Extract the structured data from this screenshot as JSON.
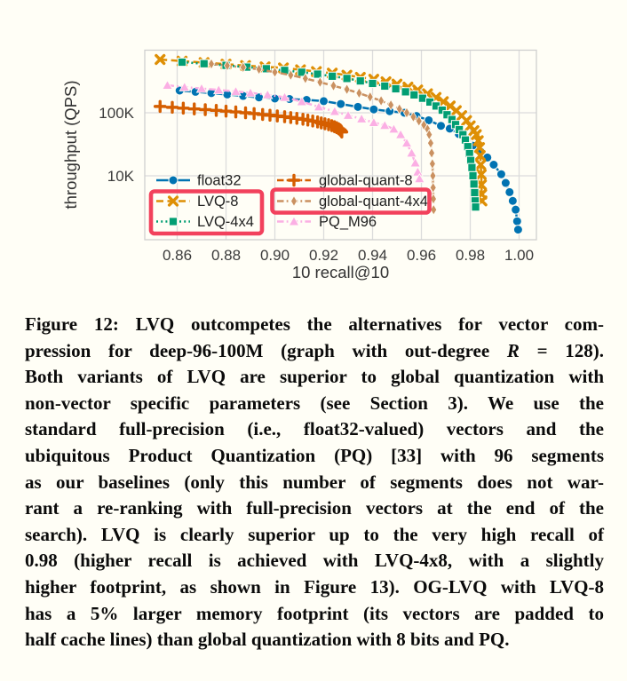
{
  "figure": {
    "caption_lines": [
      [
        {
          "t": "Figure 12: LVQ outcompetes the alternatives for vector com-"
        }
      ],
      [
        {
          "t": "pression for deep-96-100M (graph with out-degree "
        },
        {
          "t": "R",
          "i": true
        },
        {
          "t": " = 128)."
        }
      ],
      [
        {
          "t": "Both variants of LVQ are superior to global quantization with"
        }
      ],
      [
        {
          "t": "non-vector specific parameters (see Section 3). We use the"
        }
      ],
      [
        {
          "t": "standard full-precision (i.e., float32-valued) vectors and the"
        }
      ],
      [
        {
          "t": "ubiquitous Product Quantization (PQ) [33] with 96 segments"
        }
      ],
      [
        {
          "t": "as our baselines (only this number of segments does not war-"
        }
      ],
      [
        {
          "t": "rant a re-ranking with full-precision vectors at the end of the"
        }
      ],
      [
        {
          "t": "search). LVQ is clearly superior up to the very high recall of"
        }
      ],
      [
        {
          "t": "0.98 (higher recall is achieved with LVQ-4x8, with a slightly"
        }
      ],
      [
        {
          "t": "higher footprint, as shown in Figure 13). OG-LVQ with LVQ-8"
        }
      ],
      [
        {
          "t": "has a 5% larger memory footprint (its vectors are padded to"
        }
      ],
      [
        {
          "t": "half cache lines) than global quantization with 8 bits and PQ."
        }
      ]
    ]
  },
  "chart_data": {
    "type": "line",
    "title": "",
    "xlabel": "10 recall@10",
    "ylabel": "throughput (QPS)",
    "x_scale": "linear",
    "y_scale": "log",
    "xlim": [
      0.8467,
      1.0071
    ],
    "ylim": [
      1000,
      980000
    ],
    "grid": true,
    "legend": {
      "position": "lower left",
      "columns": 2
    },
    "x_ticks": [
      {
        "value": 0.86,
        "label": "0.86"
      },
      {
        "value": 0.88,
        "label": "0.88"
      },
      {
        "value": 0.9,
        "label": "0.90"
      },
      {
        "value": 0.92,
        "label": "0.92"
      },
      {
        "value": 0.94,
        "label": "0.94"
      },
      {
        "value": 0.96,
        "label": "0.96"
      },
      {
        "value": 0.98,
        "label": "0.98"
      },
      {
        "value": 1.0,
        "label": "1.00"
      }
    ],
    "y_ticks": [
      {
        "value": 10000,
        "label": "10K"
      },
      {
        "value": 100000,
        "label": "100K"
      }
    ],
    "style": {
      "background": "#fffef6",
      "grid_color": "#dcdcdc",
      "spine_color": "#cfcfcf",
      "tick_color": "#3b3b3b",
      "annotation_color": "#f2415c"
    },
    "series": [
      {
        "name": "float32",
        "color": "#0173b2",
        "line_style": "solid",
        "marker": "circle",
        "points": [
          [
            0.861,
            225000
          ],
          [
            0.8675,
            215000
          ],
          [
            0.874,
            205000
          ],
          [
            0.8805,
            195000
          ],
          [
            0.887,
            185000
          ],
          [
            0.8935,
            175000
          ],
          [
            0.9,
            168000
          ],
          [
            0.906,
            165000
          ],
          [
            0.913,
            160000
          ],
          [
            0.92,
            153000
          ],
          [
            0.927,
            138000
          ],
          [
            0.934,
            124000
          ],
          [
            0.9405,
            113000
          ],
          [
            0.947,
            106000
          ],
          [
            0.953,
            100000
          ],
          [
            0.958,
            89000
          ],
          [
            0.963,
            76000
          ],
          [
            0.968,
            62000
          ],
          [
            0.9716,
            56000
          ],
          [
            0.9753,
            46000
          ],
          [
            0.978,
            38000
          ],
          [
            0.981,
            30000
          ],
          [
            0.9843,
            24000
          ],
          [
            0.987,
            19500
          ],
          [
            0.9896,
            15000
          ],
          [
            0.9927,
            10600
          ],
          [
            0.9945,
            7700
          ],
          [
            0.9961,
            5500
          ],
          [
            0.9974,
            4000
          ],
          [
            0.9986,
            2900
          ],
          [
            0.9992,
            1900
          ],
          [
            0.9996,
            1400
          ]
        ]
      },
      {
        "name": "LVQ-8",
        "color": "#de8f05",
        "line_style": "dashed",
        "marker": "x",
        "points": [
          [
            0.853,
            700000
          ],
          [
            0.862,
            660000
          ],
          [
            0.871,
            625000
          ],
          [
            0.88,
            590000
          ],
          [
            0.888,
            560000
          ],
          [
            0.896,
            535000
          ],
          [
            0.9035,
            515000
          ],
          [
            0.9105,
            480000
          ],
          [
            0.917,
            450000
          ],
          [
            0.9235,
            425000
          ],
          [
            0.9295,
            395000
          ],
          [
            0.935,
            365000
          ],
          [
            0.9405,
            340000
          ],
          [
            0.9455,
            310000
          ],
          [
            0.95,
            285000
          ],
          [
            0.9545,
            255000
          ],
          [
            0.9585,
            230000
          ],
          [
            0.9625,
            200000
          ],
          [
            0.966,
            175000
          ],
          [
            0.969,
            150000
          ],
          [
            0.9718,
            128000
          ],
          [
            0.9743,
            108000
          ],
          [
            0.9765,
            90000
          ],
          [
            0.9785,
            75000
          ],
          [
            0.98,
            62000
          ],
          [
            0.9815,
            52000
          ],
          [
            0.9825,
            45000
          ],
          [
            0.9833,
            36000
          ],
          [
            0.9838,
            28000
          ],
          [
            0.9841,
            21000
          ],
          [
            0.9843,
            15000
          ],
          [
            0.9845,
            10500
          ],
          [
            0.9846,
            7200
          ],
          [
            0.9847,
            5100
          ],
          [
            0.9848,
            4000
          ]
        ]
      },
      {
        "name": "LVQ-4x4",
        "color": "#029e73",
        "line_style": "dotted",
        "marker": "square",
        "points": [
          [
            0.862,
            635000
          ],
          [
            0.871,
            600000
          ],
          [
            0.88,
            565000
          ],
          [
            0.8885,
            530000
          ],
          [
            0.8965,
            500000
          ],
          [
            0.904,
            470000
          ],
          [
            0.911,
            440000
          ],
          [
            0.9175,
            410000
          ],
          [
            0.9235,
            380000
          ],
          [
            0.9295,
            350000
          ],
          [
            0.935,
            320000
          ],
          [
            0.94,
            292000
          ],
          [
            0.945,
            265000
          ],
          [
            0.9495,
            240000
          ],
          [
            0.9535,
            215000
          ],
          [
            0.957,
            192000
          ],
          [
            0.9605,
            170000
          ],
          [
            0.9635,
            148000
          ],
          [
            0.966,
            128000
          ],
          [
            0.9685,
            110000
          ],
          [
            0.9705,
            93000
          ],
          [
            0.9725,
            78000
          ],
          [
            0.974,
            65000
          ],
          [
            0.9755,
            54000
          ],
          [
            0.977,
            45000
          ],
          [
            0.978,
            37000
          ],
          [
            0.979,
            29000
          ],
          [
            0.9797,
            22500
          ],
          [
            0.9802,
            17500
          ],
          [
            0.9807,
            13500
          ],
          [
            0.9811,
            10000
          ],
          [
            0.9815,
            7400
          ],
          [
            0.9818,
            5400
          ],
          [
            0.982,
            4000
          ],
          [
            0.9822,
            3200
          ]
        ]
      },
      {
        "name": "global-quant-8",
        "color": "#d55e00",
        "line_style": "dashdot",
        "marker": "plus",
        "points": [
          [
            0.853,
            126000
          ],
          [
            0.858,
            122000
          ],
          [
            0.8625,
            118500
          ],
          [
            0.867,
            115000
          ],
          [
            0.8715,
            112000
          ],
          [
            0.876,
            109000
          ],
          [
            0.88,
            106000
          ],
          [
            0.884,
            103000
          ],
          [
            0.888,
            100000
          ],
          [
            0.8915,
            97000
          ],
          [
            0.895,
            94000
          ],
          [
            0.898,
            91500
          ],
          [
            0.901,
            89000
          ],
          [
            0.904,
            86500
          ],
          [
            0.9065,
            84000
          ],
          [
            0.909,
            81500
          ],
          [
            0.9115,
            79000
          ],
          [
            0.9135,
            76500
          ],
          [
            0.9155,
            74000
          ],
          [
            0.9175,
            71500
          ],
          [
            0.919,
            69000
          ],
          [
            0.9205,
            66800
          ],
          [
            0.922,
            64600
          ],
          [
            0.9233,
            62400
          ],
          [
            0.9244,
            60200
          ],
          [
            0.9253,
            58000
          ],
          [
            0.9261,
            55800
          ],
          [
            0.9267,
            53600
          ],
          [
            0.9271,
            51500
          ],
          [
            0.9274,
            49500
          ]
        ]
      },
      {
        "name": "global-quant-4x4",
        "color": "#ca9161",
        "line_style": "dashdot",
        "marker": "thin-diamond",
        "points": [
          [
            0.874,
            595000
          ],
          [
            0.8805,
            560000
          ],
          [
            0.887,
            525000
          ],
          [
            0.8935,
            490000
          ],
          [
            0.9,
            440000
          ],
          [
            0.9065,
            395000
          ],
          [
            0.9125,
            350000
          ],
          [
            0.9185,
            305000
          ],
          [
            0.924,
            268000
          ],
          [
            0.9295,
            235000
          ],
          [
            0.9345,
            205000
          ],
          [
            0.939,
            178000
          ],
          [
            0.9435,
            155000
          ],
          [
            0.9475,
            133000
          ],
          [
            0.951,
            115000
          ],
          [
            0.954,
            100000
          ],
          [
            0.9567,
            86000
          ],
          [
            0.959,
            74000
          ],
          [
            0.961,
            64000
          ],
          [
            0.9625,
            55000
          ],
          [
            0.9632,
            45000
          ],
          [
            0.9638,
            33000
          ],
          [
            0.9642,
            23000
          ],
          [
            0.9645,
            15500
          ],
          [
            0.9647,
            10000
          ],
          [
            0.9648,
            6500
          ],
          [
            0.9649,
            4300
          ],
          [
            0.965,
            2900
          ]
        ]
      },
      {
        "name": "PQ_M96",
        "color": "#fbafe4",
        "line_style": "dashdot",
        "marker": "triangle",
        "points": [
          [
            0.856,
            273000
          ],
          [
            0.863,
            255000
          ],
          [
            0.87,
            242000
          ],
          [
            0.877,
            230000
          ],
          [
            0.884,
            218000
          ],
          [
            0.89,
            207000
          ],
          [
            0.897,
            193000
          ],
          [
            0.904,
            176000
          ],
          [
            0.911,
            150000
          ],
          [
            0.918,
            124000
          ],
          [
            0.9245,
            105000
          ],
          [
            0.93,
            91000
          ],
          [
            0.9355,
            80000
          ],
          [
            0.9405,
            70000
          ],
          [
            0.945,
            63000
          ],
          [
            0.9487,
            55000
          ],
          [
            0.9515,
            45000
          ],
          [
            0.954,
            33000
          ],
          [
            0.956,
            23000
          ],
          [
            0.9575,
            16000
          ],
          [
            0.9585,
            11500
          ],
          [
            0.9592,
            9000
          ]
        ]
      }
    ],
    "annotations": [
      {
        "type": "rect",
        "color": "#f2415c",
        "location": "legend",
        "legend_entries": [
          "LVQ-8",
          "LVQ-4x4"
        ]
      },
      {
        "type": "rect",
        "color": "#f2415c",
        "location": "legend",
        "legend_entries": [
          "global-quant-4x4"
        ]
      }
    ]
  }
}
